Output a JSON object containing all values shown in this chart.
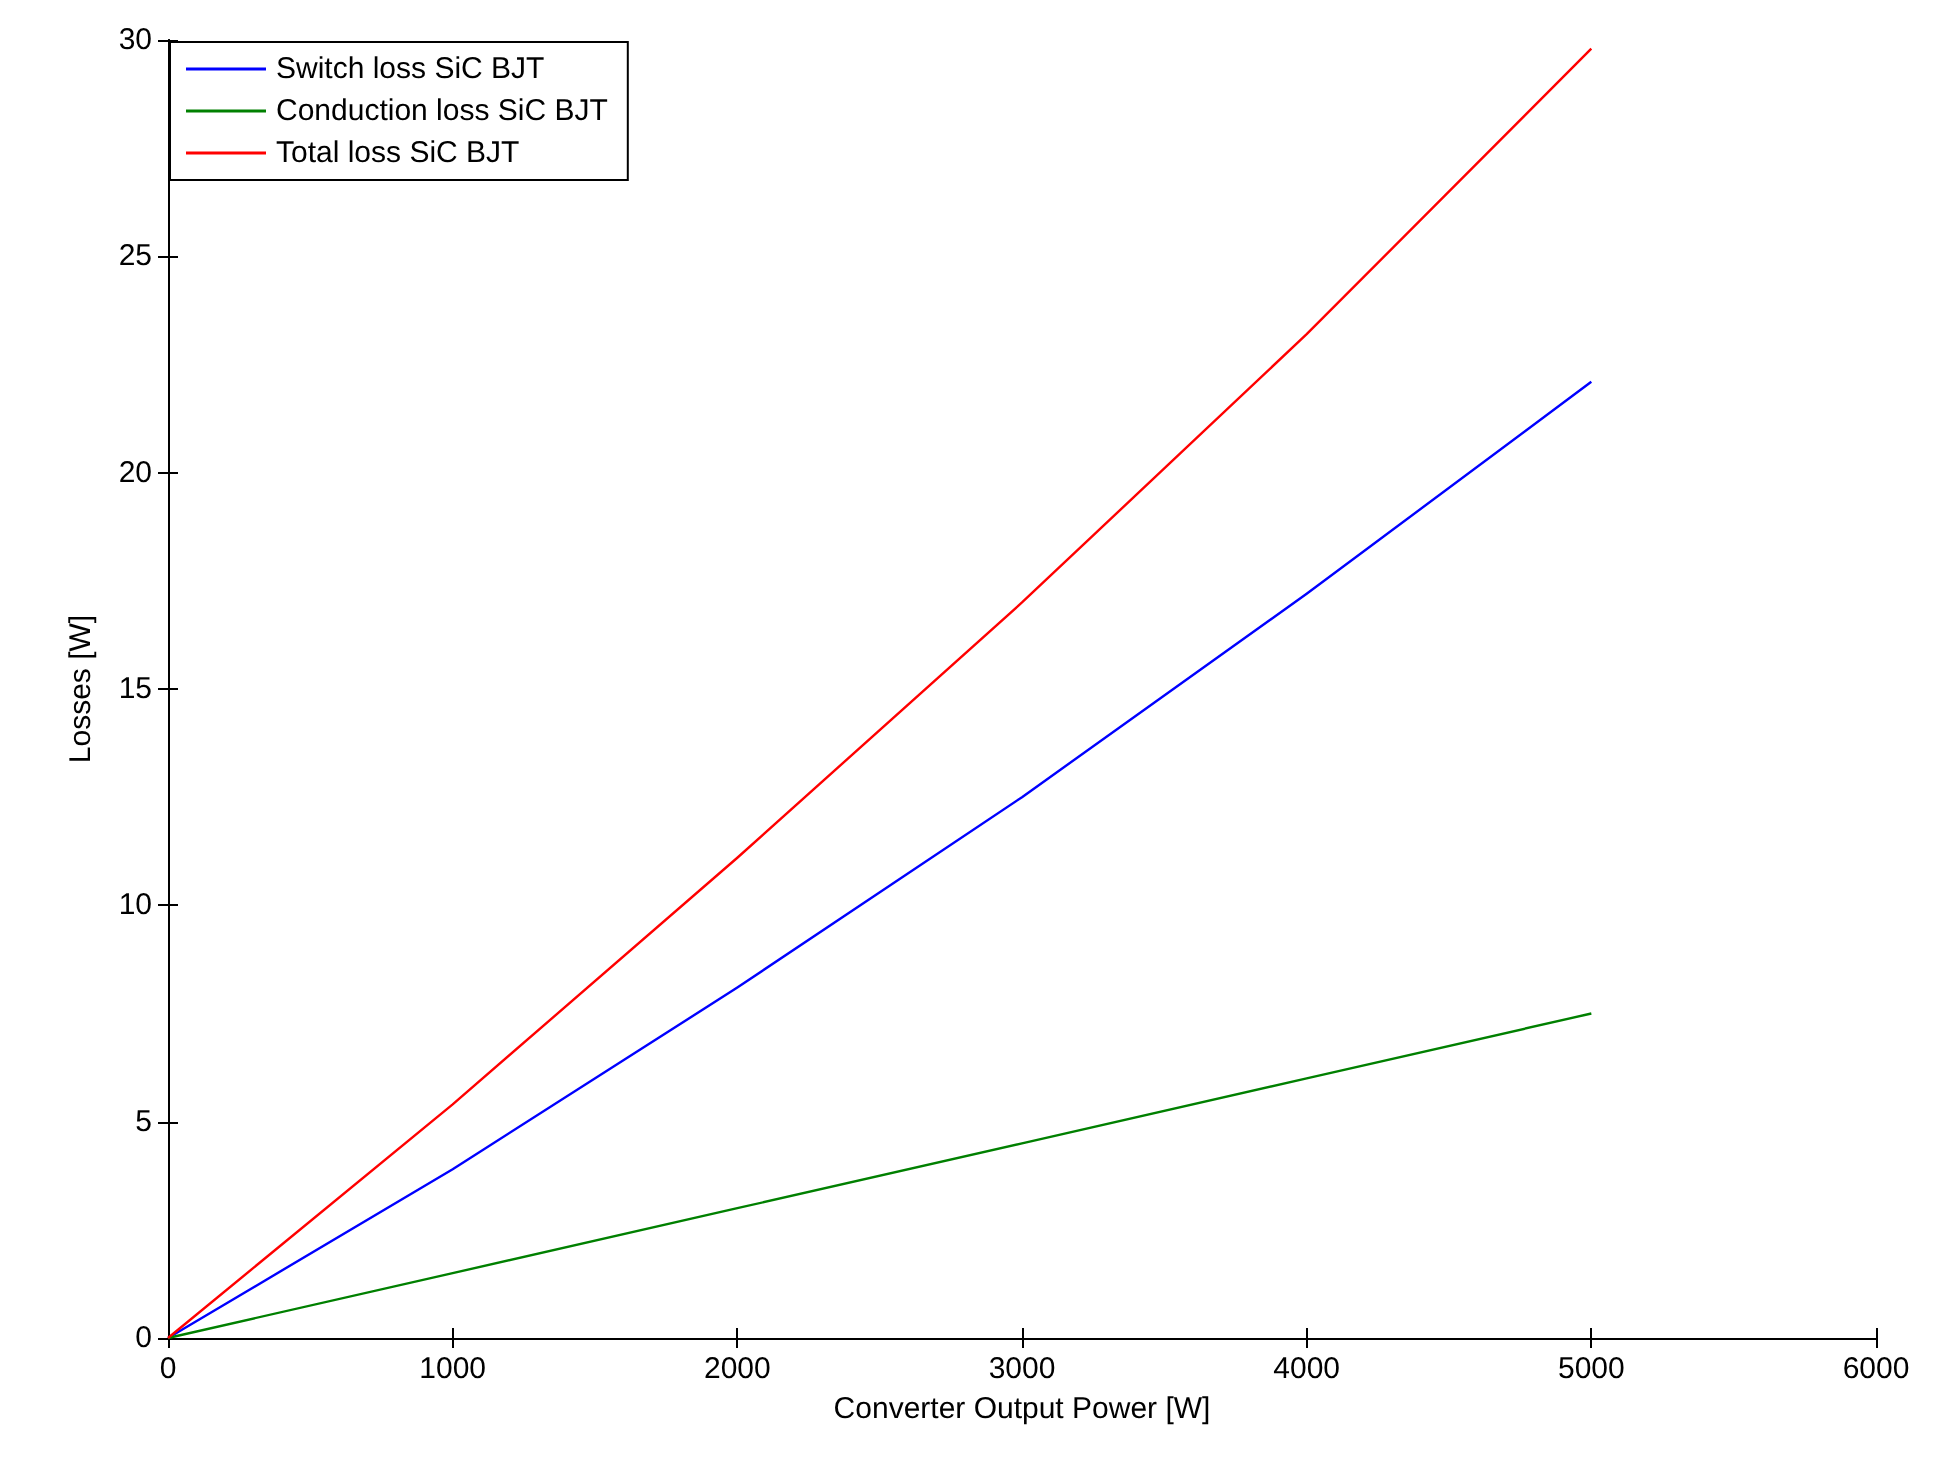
{
  "chart_data": {
    "type": "line",
    "xlabel": "Converter Output Power [W]",
    "ylabel": "Losses [W]",
    "x": [
      0,
      1000,
      2000,
      3000,
      4000,
      5000
    ],
    "series": [
      {
        "name": "Switch loss SiC BJT",
        "color": "#0000ff",
        "values": [
          0,
          3.9,
          8.1,
          12.5,
          17.2,
          22.1
        ]
      },
      {
        "name": "Conduction loss SiC BJT",
        "color": "#008000",
        "values": [
          0,
          1.5,
          3.0,
          4.5,
          6.0,
          7.5
        ]
      },
      {
        "name": "Total loss SiC BJT",
        "color": "#ff0000",
        "values": [
          0,
          5.4,
          11.1,
          17.0,
          23.2,
          29.8
        ]
      }
    ],
    "xlim": [
      0,
      6000
    ],
    "xticks": [
      0,
      1000,
      2000,
      3000,
      4000,
      5000,
      6000
    ],
    "ylim": [
      0,
      30
    ],
    "yticks": [
      0,
      5,
      10,
      15,
      20,
      25,
      30
    ],
    "grid": false,
    "legend": "top left",
    "marker": "none",
    "line_style": "solid"
  }
}
